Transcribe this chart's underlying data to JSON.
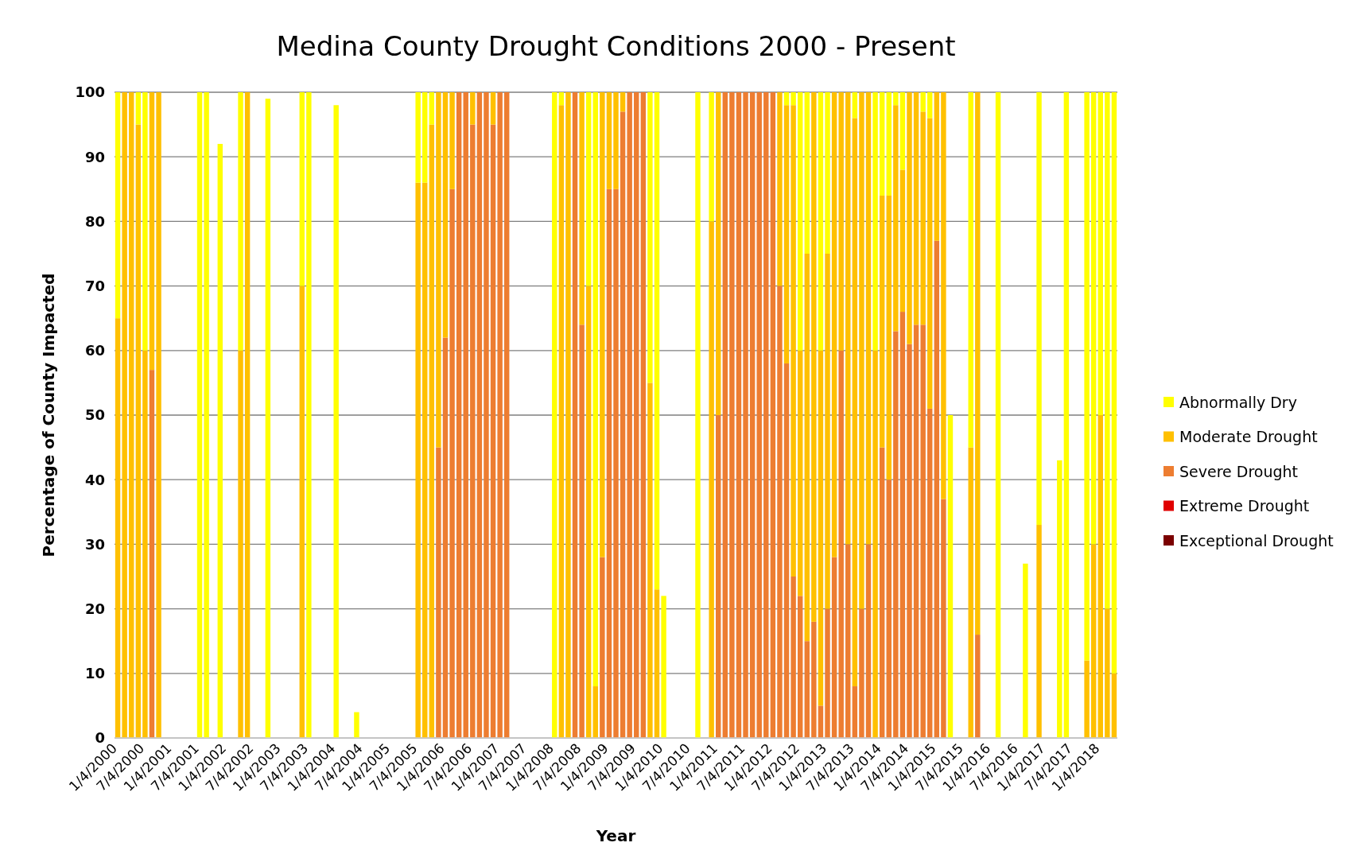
{
  "chart_data": {
    "type": "bar",
    "stacked": true,
    "title": "Medina County Drought Conditions 2000 - Present",
    "xlabel": "Year",
    "ylabel": "Percentage of County Impacted",
    "categories": [
      "1/4/2000",
      null,
      null,
      null,
      "7/4/2000",
      null,
      null,
      null,
      "1/4/2001",
      null,
      null,
      null,
      "7/4/2001",
      null,
      null,
      null,
      "1/4/2002",
      null,
      null,
      null,
      "7/4/2002",
      null,
      null,
      null,
      "1/4/2003",
      null,
      null,
      null,
      "7/4/2003",
      null,
      null,
      null,
      "1/4/2004",
      null,
      null,
      null,
      "7/4/2004",
      null,
      null,
      null,
      "1/4/2005",
      null,
      null,
      null,
      "7/4/2005",
      null,
      null,
      null,
      "1/4/2006",
      null,
      null,
      null,
      "7/4/2006",
      null,
      null,
      null,
      "1/4/2007",
      null,
      null,
      null,
      "7/4/2007",
      null,
      null,
      null,
      "1/4/2008",
      null,
      null,
      null,
      "7/4/2008",
      null,
      null,
      null,
      "1/4/2009",
      null,
      null,
      null,
      "7/4/2009",
      null,
      null,
      null,
      "1/4/2010",
      null,
      null,
      null,
      "7/4/2010",
      null,
      null,
      null,
      "1/4/2011",
      null,
      null,
      null,
      "7/4/2011",
      null,
      null,
      null,
      "1/4/2012",
      null,
      null,
      null,
      "7/4/2012",
      null,
      null,
      null,
      "1/4/2013",
      null,
      null,
      null,
      "7/4/2013",
      null,
      null,
      null,
      "1/4/2014",
      null,
      null,
      null,
      "7/4/2014",
      null,
      null,
      null,
      "1/4/2015",
      null,
      null,
      null,
      "7/4/2015",
      null,
      null,
      null,
      "1/4/2016",
      null,
      null,
      null,
      "7/4/2016",
      null,
      null,
      null,
      "1/4/2017",
      null,
      null,
      null,
      "7/4/2017",
      null,
      null,
      null,
      "1/4/2018",
      null,
      null
    ],
    "series": [
      {
        "name": "Exceptional Drought",
        "color": "#7b0000",
        "values": [
          0,
          0,
          0,
          0,
          0,
          0,
          0,
          0,
          0,
          0,
          0,
          0,
          0,
          0,
          0,
          0,
          0,
          0,
          0,
          0,
          0,
          0,
          0,
          0,
          0,
          0,
          0,
          0,
          0,
          0,
          0,
          0,
          0,
          0,
          0,
          0,
          0,
          0,
          0,
          0,
          0,
          0,
          0,
          0,
          0,
          0,
          0,
          0,
          0,
          0,
          0,
          0,
          0,
          0,
          0,
          0,
          0,
          0,
          0,
          0,
          0,
          0,
          0,
          0,
          0,
          0,
          0,
          0,
          0,
          0,
          0,
          0,
          0,
          0,
          0,
          0,
          0,
          0,
          0,
          0,
          0,
          0,
          0,
          0,
          0,
          0,
          0,
          0,
          0,
          0,
          0,
          0,
          0,
          0,
          0,
          0,
          0,
          0,
          0,
          0,
          0,
          0,
          0,
          0,
          0,
          0,
          0,
          0,
          0,
          0,
          0,
          0,
          0,
          0,
          0,
          0,
          0,
          0,
          0,
          0,
          0,
          0,
          0,
          0,
          0,
          0,
          0,
          0,
          0,
          0,
          0,
          0,
          0,
          0,
          0,
          0,
          0,
          0,
          0,
          0,
          0,
          0,
          0,
          0,
          0,
          0,
          0
        ]
      },
      {
        "name": "Extreme Drought",
        "color": "#e00000",
        "values": [
          0,
          0,
          0,
          0,
          0,
          0,
          0,
          0,
          0,
          0,
          0,
          0,
          0,
          0,
          0,
          0,
          0,
          0,
          0,
          0,
          0,
          0,
          0,
          0,
          0,
          0,
          0,
          0,
          0,
          0,
          0,
          0,
          0,
          0,
          0,
          0,
          0,
          0,
          0,
          0,
          0,
          0,
          0,
          0,
          0,
          0,
          0,
          0,
          0,
          0,
          0,
          0,
          0,
          0,
          0,
          0,
          0,
          0,
          0,
          0,
          0,
          0,
          0,
          0,
          0,
          0,
          0,
          0,
          0,
          0,
          0,
          0,
          0,
          0,
          0,
          0,
          0,
          0,
          0,
          0,
          0,
          0,
          0,
          0,
          0,
          0,
          0,
          0,
          0,
          0,
          0,
          0,
          0,
          0,
          0,
          0,
          0,
          0,
          0,
          0,
          0,
          0,
          0,
          0,
          0,
          0,
          0,
          0,
          0,
          0,
          0,
          0,
          0,
          0,
          0,
          0,
          0,
          0,
          0,
          0,
          0,
          0,
          0,
          0,
          0,
          0,
          0,
          0,
          0,
          0,
          0,
          0,
          0,
          0,
          0,
          0,
          0,
          0,
          0,
          0,
          0,
          0,
          0,
          0,
          0,
          0,
          0
        ]
      },
      {
        "name": "Severe Drought",
        "color": "#ed7d31",
        "values": [
          0,
          0,
          0,
          0,
          0,
          57,
          0,
          0,
          0,
          0,
          0,
          0,
          0,
          0,
          0,
          0,
          0,
          0,
          0,
          0,
          0,
          0,
          0,
          0,
          0,
          0,
          0,
          0,
          0,
          0,
          0,
          0,
          0,
          0,
          0,
          0,
          0,
          0,
          0,
          0,
          0,
          0,
          0,
          0,
          0,
          0,
          0,
          45,
          62,
          85,
          100,
          100,
          95,
          100,
          100,
          95,
          100,
          100,
          0,
          0,
          0,
          0,
          0,
          0,
          0,
          0,
          0,
          100,
          64,
          0,
          0,
          28,
          85,
          85,
          97,
          100,
          100,
          100,
          0,
          0,
          0,
          0,
          0,
          0,
          0,
          0,
          0,
          0,
          50,
          100,
          100,
          100,
          100,
          100,
          100,
          100,
          100,
          70,
          58,
          25,
          22,
          15,
          18,
          5,
          20,
          28,
          60,
          30,
          8,
          20,
          30,
          0,
          45,
          40,
          63,
          66,
          61,
          64,
          64,
          51,
          77,
          37,
          0,
          0,
          0,
          0,
          16,
          0,
          0,
          0,
          0,
          0,
          0,
          0,
          0,
          0,
          0,
          0,
          0,
          0,
          0,
          0,
          0,
          0,
          0,
          0,
          0
        ]
      },
      {
        "name": "Moderate Drought",
        "color": "#ffc000",
        "values": [
          65,
          100,
          100,
          95,
          60,
          43,
          100,
          0,
          0,
          0,
          0,
          0,
          0,
          0,
          0,
          0,
          0,
          0,
          60,
          100,
          0,
          0,
          0,
          0,
          0,
          0,
          0,
          70,
          0,
          0,
          0,
          0,
          0,
          0,
          0,
          0,
          0,
          0,
          0,
          0,
          0,
          0,
          0,
          0,
          86,
          86,
          95,
          55,
          38,
          15,
          0,
          0,
          5,
          0,
          0,
          5,
          0,
          0,
          0,
          0,
          0,
          0,
          0,
          0,
          0,
          98,
          100,
          0,
          36,
          70,
          8,
          72,
          15,
          15,
          3,
          0,
          0,
          0,
          55,
          23,
          0,
          0,
          0,
          0,
          0,
          0,
          0,
          80,
          50,
          0,
          0,
          0,
          0,
          0,
          0,
          0,
          0,
          30,
          40,
          73,
          38,
          60,
          82,
          55,
          55,
          72,
          40,
          70,
          88,
          80,
          70,
          60,
          39,
          44,
          35,
          22,
          39,
          36,
          33,
          45,
          23,
          63,
          0,
          0,
          0,
          45,
          84,
          0,
          0,
          0,
          0,
          0,
          0,
          0,
          0,
          33,
          0,
          0,
          0,
          0,
          0,
          0,
          12,
          30,
          50,
          20,
          10
        ]
      },
      {
        "name": "Abnormally Dry",
        "color": "#ffff00",
        "values": [
          35,
          0,
          0,
          5,
          40,
          0,
          0,
          0,
          0,
          0,
          0,
          0,
          100,
          100,
          0,
          92,
          0,
          0,
          40,
          0,
          0,
          0,
          99,
          0,
          0,
          0,
          0,
          30,
          100,
          0,
          0,
          0,
          98,
          0,
          0,
          4,
          0,
          0,
          0,
          0,
          0,
          0,
          0,
          0,
          14,
          14,
          5,
          0,
          0,
          0,
          0,
          0,
          0,
          0,
          0,
          0,
          0,
          0,
          0,
          0,
          0,
          0,
          0,
          0,
          100,
          2,
          0,
          0,
          0,
          30,
          92,
          0,
          0,
          0,
          0,
          0,
          0,
          0,
          45,
          77,
          22,
          0,
          0,
          0,
          0,
          100,
          0,
          20,
          0,
          0,
          0,
          0,
          0,
          0,
          0,
          0,
          0,
          0,
          2,
          2,
          40,
          25,
          0,
          40,
          25,
          0,
          0,
          0,
          4,
          0,
          0,
          40,
          16,
          16,
          2,
          12,
          0,
          0,
          3,
          4,
          0,
          0,
          50,
          0,
          0,
          55,
          0,
          0,
          0,
          100,
          0,
          0,
          0,
          27,
          0,
          67,
          0,
          0,
          43,
          100,
          0,
          0,
          88,
          70,
          50,
          80,
          90
        ]
      }
    ],
    "ylim": [
      0,
      100
    ],
    "yticks": [
      0,
      10,
      20,
      30,
      40,
      50,
      60,
      70,
      80,
      90,
      100
    ],
    "grid": "y",
    "legend": "right"
  }
}
